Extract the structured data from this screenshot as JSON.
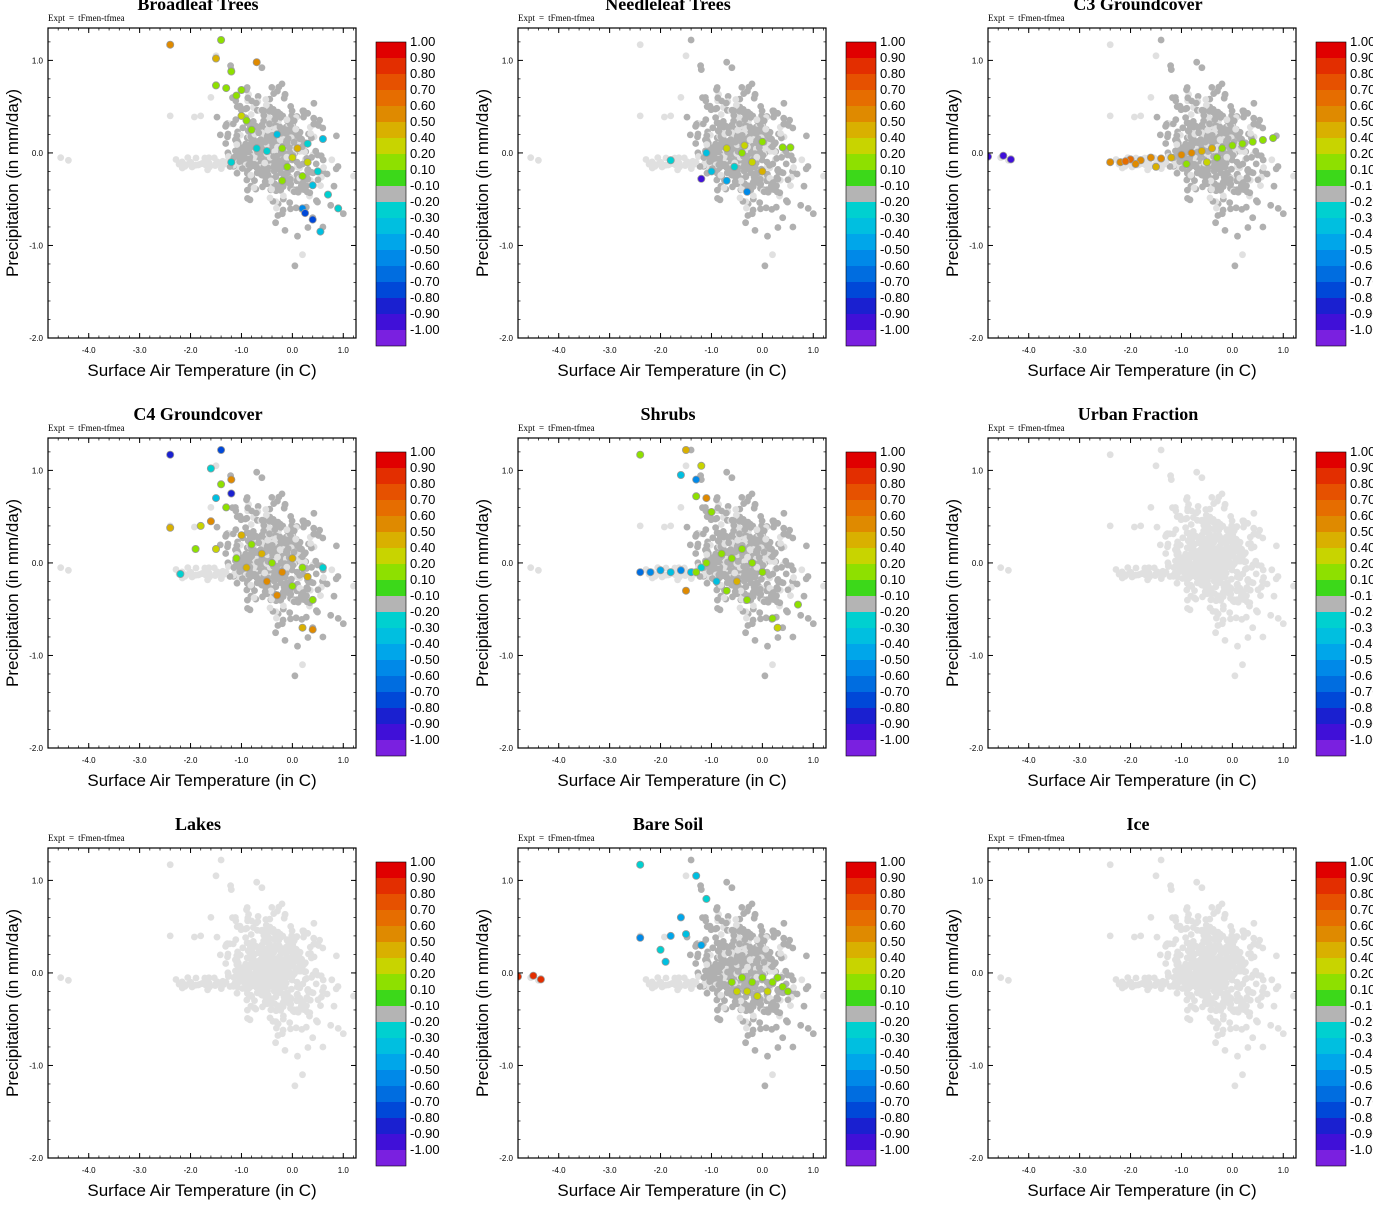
{
  "figure": {
    "expt_key": "Expt",
    "expt_eq": "=",
    "expt_value": "tFmen-tfmea"
  },
  "axes": {
    "xlabel": "Surface Air Temperature (in C)",
    "ylabel": "Precipitation (in mm/day)",
    "xlim": [
      -4.8,
      1.25
    ],
    "ylim": [
      -2.0,
      1.35
    ],
    "xticks": [
      -4.0,
      -3.0,
      -2.0,
      -1.0,
      0.0,
      1.0
    ],
    "xtick_labels": [
      "-4.0",
      "-3.0",
      "-2.0",
      "-1.0",
      "0.0",
      "1.0"
    ],
    "yticks": [
      1.0,
      0.0,
      -1.0,
      -2.0
    ],
    "ytick_labels": [
      "1.0",
      "0.0",
      "-1.0",
      "-2.0"
    ]
  },
  "colorbar": {
    "labels": [
      "1.00",
      "0.90",
      "0.80",
      "0.70",
      "0.60",
      "0.50",
      "0.40",
      "0.20",
      "0.10",
      "-0.10",
      "-0.20",
      "-0.30",
      "-0.40",
      "-0.50",
      "-0.60",
      "-0.70",
      "-0.80",
      "-0.90",
      "-1.00"
    ],
    "colors": [
      "#e00000",
      "#e32e00",
      "#e65100",
      "#e66d00",
      "#df8a00",
      "#d9b000",
      "#c8d400",
      "#8ee000",
      "#3cd81a",
      "#b4b4b4",
      "#00d0d0",
      "#00bfe0",
      "#00a6ea",
      "#0089e8",
      "#006de0",
      "#0048d8",
      "#1a20d0",
      "#4010d8",
      "#7a20e0"
    ]
  },
  "grey_colors": {
    "light": "#e0e0e0",
    "mid": "#b0b0b0"
  },
  "chart_data": [
    {
      "type": "scatter",
      "title": "Broadleaf Trees",
      "xlabel": "Surface Air Temperature (in C)",
      "ylabel": "Precipitation (in mm/day)",
      "highlight_points": [
        {
          "x": -2.4,
          "y": 1.17,
          "v": 0.6
        },
        {
          "x": -1.4,
          "y": 1.22,
          "v": 0.15
        },
        {
          "x": -1.5,
          "y": 1.02,
          "v": 0.45
        },
        {
          "x": -0.7,
          "y": 0.98,
          "v": 0.6
        },
        {
          "x": -1.2,
          "y": 0.88,
          "v": 0.15
        },
        {
          "x": -1.5,
          "y": 0.73,
          "v": 0.15
        },
        {
          "x": -1.3,
          "y": 0.7,
          "v": 0.15
        },
        {
          "x": -1.0,
          "y": 0.68,
          "v": 0.15
        },
        {
          "x": -1.1,
          "y": 0.62,
          "v": 0.15
        },
        {
          "x": -1.0,
          "y": 0.4,
          "v": 0.3
        },
        {
          "x": -0.9,
          "y": 0.35,
          "v": 0.15
        },
        {
          "x": -0.8,
          "y": 0.25,
          "v": 0.15
        },
        {
          "x": -1.2,
          "y": -0.1,
          "v": -0.2
        },
        {
          "x": -0.7,
          "y": 0.05,
          "v": -0.2
        },
        {
          "x": -0.5,
          "y": 0.02,
          "v": -0.25
        },
        {
          "x": -0.2,
          "y": 0.05,
          "v": 0.15
        },
        {
          "x": 0.0,
          "y": -0.05,
          "v": 0.4
        },
        {
          "x": 0.1,
          "y": 0.05,
          "v": 0.5
        },
        {
          "x": -0.1,
          "y": -0.15,
          "v": 0.15
        },
        {
          "x": -0.2,
          "y": -0.3,
          "v": 0.15
        },
        {
          "x": 0.3,
          "y": -0.1,
          "v": 0.3
        },
        {
          "x": 0.2,
          "y": -0.25,
          "v": 0.15
        },
        {
          "x": 0.5,
          "y": -0.2,
          "v": -0.2
        },
        {
          "x": 0.6,
          "y": 0.15,
          "v": -0.3
        },
        {
          "x": 0.3,
          "y": 0.1,
          "v": -0.25
        },
        {
          "x": -0.3,
          "y": 0.2,
          "v": -0.35
        },
        {
          "x": 0.4,
          "y": -0.35,
          "v": -0.3
        },
        {
          "x": 0.2,
          "y": -0.6,
          "v": -0.55
        },
        {
          "x": 0.25,
          "y": -0.65,
          "v": -0.7
        },
        {
          "x": 0.4,
          "y": -0.72,
          "v": -0.75
        },
        {
          "x": 0.55,
          "y": -0.85,
          "v": -0.3
        },
        {
          "x": 0.9,
          "y": -0.6,
          "v": -0.25
        },
        {
          "x": 0.7,
          "y": -0.45,
          "v": -0.2
        }
      ]
    },
    {
      "type": "scatter",
      "title": "Needleleaf Trees",
      "xlabel": "Surface Air Temperature (in C)",
      "ylabel": "Precipitation (in mm/day)",
      "highlight_points": [
        {
          "x": -1.8,
          "y": -0.08,
          "v": -0.25
        },
        {
          "x": -1.2,
          "y": -0.28,
          "v": -0.9
        },
        {
          "x": -1.1,
          "y": 0.0,
          "v": -0.3
        },
        {
          "x": -1.0,
          "y": -0.2,
          "v": -0.3
        },
        {
          "x": -0.7,
          "y": 0.05,
          "v": 0.4
        },
        {
          "x": -0.4,
          "y": 0.0,
          "v": 0.15
        },
        {
          "x": -0.2,
          "y": -0.1,
          "v": 0.35
        },
        {
          "x": -0.35,
          "y": 0.08,
          "v": 0.3
        },
        {
          "x": 0.0,
          "y": -0.2,
          "v": 0.5
        },
        {
          "x": 0.4,
          "y": 0.06,
          "v": 0.15
        },
        {
          "x": 0.55,
          "y": 0.06,
          "v": 0.15
        },
        {
          "x": -0.7,
          "y": -0.3,
          "v": -0.4
        },
        {
          "x": -0.3,
          "y": -0.42,
          "v": -0.5
        },
        {
          "x": 0.0,
          "y": 0.12,
          "v": 0.2
        },
        {
          "x": -0.55,
          "y": -0.15,
          "v": -0.25
        }
      ]
    },
    {
      "type": "scatter",
      "title": "C3 Groundcover",
      "xlabel": "Surface Air Temperature (in C)",
      "ylabel": "Precipitation (in mm/day)",
      "highlight_points": [
        {
          "x": -4.8,
          "y": -0.04,
          "v": -0.9
        },
        {
          "x": -4.5,
          "y": -0.03,
          "v": -0.9
        },
        {
          "x": -4.35,
          "y": -0.07,
          "v": -0.9
        },
        {
          "x": -2.4,
          "y": -0.1,
          "v": 0.6
        },
        {
          "x": -2.2,
          "y": -0.1,
          "v": 0.6
        },
        {
          "x": -2.0,
          "y": -0.07,
          "v": 0.65
        },
        {
          "x": -1.8,
          "y": -0.08,
          "v": 0.6
        },
        {
          "x": -1.6,
          "y": -0.05,
          "v": 0.55
        },
        {
          "x": -1.4,
          "y": -0.06,
          "v": 0.6
        },
        {
          "x": -1.2,
          "y": -0.05,
          "v": 0.5
        },
        {
          "x": -1.0,
          "y": -0.02,
          "v": 0.55
        },
        {
          "x": -0.8,
          "y": 0.0,
          "v": 0.6
        },
        {
          "x": -0.6,
          "y": 0.02,
          "v": 0.5
        },
        {
          "x": -0.4,
          "y": 0.05,
          "v": 0.45
        },
        {
          "x": -0.2,
          "y": 0.05,
          "v": 0.15
        },
        {
          "x": 0.0,
          "y": 0.08,
          "v": 0.15
        },
        {
          "x": 0.2,
          "y": 0.1,
          "v": 0.15
        },
        {
          "x": 0.4,
          "y": 0.12,
          "v": 0.15
        },
        {
          "x": 0.6,
          "y": 0.14,
          "v": 0.15
        },
        {
          "x": 0.8,
          "y": 0.16,
          "v": 0.15
        },
        {
          "x": -0.5,
          "y": -0.1,
          "v": 0.4
        },
        {
          "x": -1.5,
          "y": -0.15,
          "v": 0.45
        },
        {
          "x": -0.9,
          "y": -0.12,
          "v": 0.15
        },
        {
          "x": -1.9,
          "y": -0.12,
          "v": 0.55
        },
        {
          "x": -0.3,
          "y": -0.05,
          "v": 0.15
        },
        {
          "x": -2.1,
          "y": -0.09,
          "v": 0.65
        }
      ]
    },
    {
      "type": "scatter",
      "title": "C4 Groundcover",
      "xlabel": "Surface Air Temperature (in C)",
      "ylabel": "Precipitation (in mm/day)",
      "highlight_points": [
        {
          "x": -2.4,
          "y": 1.17,
          "v": -0.8
        },
        {
          "x": -1.4,
          "y": 1.22,
          "v": -0.75
        },
        {
          "x": -1.6,
          "y": 1.02,
          "v": -0.25
        },
        {
          "x": -1.2,
          "y": 0.9,
          "v": 0.55
        },
        {
          "x": -1.4,
          "y": 0.85,
          "v": 0.15
        },
        {
          "x": -1.2,
          "y": 0.75,
          "v": -0.8
        },
        {
          "x": -1.5,
          "y": 0.7,
          "v": -0.3
        },
        {
          "x": -1.3,
          "y": 0.6,
          "v": 0.15
        },
        {
          "x": -1.6,
          "y": 0.45,
          "v": 0.6
        },
        {
          "x": -1.8,
          "y": 0.4,
          "v": 0.3
        },
        {
          "x": -2.4,
          "y": 0.38,
          "v": 0.5
        },
        {
          "x": -2.2,
          "y": -0.12,
          "v": -0.25
        },
        {
          "x": -1.9,
          "y": 0.15,
          "v": 0.15
        },
        {
          "x": -1.5,
          "y": 0.15,
          "v": 0.4
        },
        {
          "x": -1.0,
          "y": 0.3,
          "v": 0.5
        },
        {
          "x": -0.8,
          "y": 0.2,
          "v": 0.15
        },
        {
          "x": -0.6,
          "y": 0.1,
          "v": 0.5
        },
        {
          "x": -0.4,
          "y": 0.0,
          "v": 0.15
        },
        {
          "x": -0.2,
          "y": -0.1,
          "v": 0.6
        },
        {
          "x": 0.0,
          "y": 0.05,
          "v": 0.5
        },
        {
          "x": 0.2,
          "y": -0.05,
          "v": 0.15
        },
        {
          "x": -0.5,
          "y": -0.2,
          "v": 0.55
        },
        {
          "x": -0.3,
          "y": -0.35,
          "v": 0.6
        },
        {
          "x": 0.0,
          "y": -0.25,
          "v": 0.15
        },
        {
          "x": 0.3,
          "y": -0.15,
          "v": 0.5
        },
        {
          "x": 0.4,
          "y": -0.4,
          "v": 0.15
        },
        {
          "x": 0.6,
          "y": -0.05,
          "v": -0.25
        },
        {
          "x": 0.2,
          "y": -0.7,
          "v": 0.45
        },
        {
          "x": 0.4,
          "y": -0.72,
          "v": 0.6
        },
        {
          "x": -1.1,
          "y": 0.05,
          "v": 0.15
        },
        {
          "x": -0.9,
          "y": -0.05,
          "v": 0.45
        }
      ]
    },
    {
      "type": "scatter",
      "title": "Shrubs",
      "xlabel": "Surface Air Temperature (in C)",
      "ylabel": "Precipitation (in mm/day)",
      "highlight_points": [
        {
          "x": -2.4,
          "y": 1.17,
          "v": 0.15
        },
        {
          "x": -1.5,
          "y": 1.22,
          "v": 0.45
        },
        {
          "x": -1.2,
          "y": 1.05,
          "v": 0.4
        },
        {
          "x": -1.6,
          "y": 0.95,
          "v": -0.3
        },
        {
          "x": -1.3,
          "y": 0.9,
          "v": -0.5
        },
        {
          "x": -1.1,
          "y": 0.7,
          "v": 0.55
        },
        {
          "x": -1.3,
          "y": 0.72,
          "v": 0.15
        },
        {
          "x": -1.0,
          "y": 0.55,
          "v": 0.15
        },
        {
          "x": -2.4,
          "y": -0.1,
          "v": -0.6
        },
        {
          "x": -2.2,
          "y": -0.1,
          "v": -0.5
        },
        {
          "x": -2.0,
          "y": -0.08,
          "v": -0.4
        },
        {
          "x": -1.8,
          "y": -0.1,
          "v": -0.3
        },
        {
          "x": -1.6,
          "y": -0.08,
          "v": -0.5
        },
        {
          "x": -1.4,
          "y": -0.1,
          "v": -0.3
        },
        {
          "x": -1.2,
          "y": -0.05,
          "v": -0.25
        },
        {
          "x": -1.1,
          "y": 0.0,
          "v": 0.15
        },
        {
          "x": -0.8,
          "y": 0.1,
          "v": 0.15
        },
        {
          "x": -0.6,
          "y": 0.05,
          "v": 0.15
        },
        {
          "x": -0.4,
          "y": 0.15,
          "v": 0.15
        },
        {
          "x": -0.2,
          "y": 0.0,
          "v": 0.15
        },
        {
          "x": 0.0,
          "y": -0.1,
          "v": 0.15
        },
        {
          "x": -0.5,
          "y": -0.2,
          "v": 0.45
        },
        {
          "x": -0.7,
          "y": -0.3,
          "v": 0.15
        },
        {
          "x": -0.3,
          "y": -0.4,
          "v": 0.15
        },
        {
          "x": 0.2,
          "y": -0.6,
          "v": 0.15
        },
        {
          "x": 0.3,
          "y": -0.7,
          "v": 0.4
        },
        {
          "x": 0.7,
          "y": -0.45,
          "v": 0.15
        },
        {
          "x": -1.5,
          "y": -0.3,
          "v": 0.55
        },
        {
          "x": -1.3,
          "y": -0.1,
          "v": 0.15
        },
        {
          "x": -0.9,
          "y": -0.2,
          "v": -0.3
        }
      ]
    },
    {
      "type": "scatter",
      "title": "Urban Fraction",
      "xlabel": "Surface Air Temperature (in C)",
      "ylabel": "Precipitation (in mm/day)",
      "highlight_points": []
    },
    {
      "type": "scatter",
      "title": "Lakes",
      "xlabel": "Surface Air Temperature (in C)",
      "ylabel": "Precipitation (in mm/day)",
      "highlight_points": []
    },
    {
      "type": "scatter",
      "title": "Bare Soil",
      "xlabel": "Surface Air Temperature (in C)",
      "ylabel": "Precipitation (in mm/day)",
      "highlight_points": [
        {
          "x": -4.8,
          "y": -0.04,
          "v": 0.85
        },
        {
          "x": -4.5,
          "y": -0.03,
          "v": 0.9
        },
        {
          "x": -4.35,
          "y": -0.07,
          "v": 0.85
        },
        {
          "x": -2.4,
          "y": 1.17,
          "v": -0.25
        },
        {
          "x": -1.3,
          "y": 1.05,
          "v": -0.3
        },
        {
          "x": -1.1,
          "y": 0.8,
          "v": -0.25
        },
        {
          "x": -1.6,
          "y": 0.6,
          "v": -0.4
        },
        {
          "x": -1.5,
          "y": 0.42,
          "v": -0.35
        },
        {
          "x": -2.4,
          "y": 0.38,
          "v": -0.55
        },
        {
          "x": -1.8,
          "y": 0.4,
          "v": -0.45
        },
        {
          "x": -2.0,
          "y": 0.25,
          "v": -0.25
        },
        {
          "x": -1.9,
          "y": 0.12,
          "v": -0.3
        },
        {
          "x": -1.2,
          "y": 0.3,
          "v": -0.4
        },
        {
          "x": -0.6,
          "y": -0.1,
          "v": 0.15
        },
        {
          "x": -0.4,
          "y": -0.05,
          "v": 0.15
        },
        {
          "x": -0.2,
          "y": -0.1,
          "v": 0.15
        },
        {
          "x": 0.0,
          "y": -0.05,
          "v": 0.15
        },
        {
          "x": 0.2,
          "y": -0.1,
          "v": 0.15
        },
        {
          "x": 0.4,
          "y": -0.15,
          "v": 0.15
        },
        {
          "x": -0.5,
          "y": -0.2,
          "v": 0.3
        },
        {
          "x": -0.3,
          "y": -0.2,
          "v": 0.3
        },
        {
          "x": 0.1,
          "y": -0.2,
          "v": 0.3
        },
        {
          "x": -0.1,
          "y": -0.25,
          "v": 0.3
        },
        {
          "x": 0.3,
          "y": -0.05,
          "v": 0.15
        },
        {
          "x": 0.5,
          "y": -0.2,
          "v": 0.15
        }
      ]
    },
    {
      "type": "scatter",
      "title": "Ice",
      "xlabel": "Surface Air Temperature (in C)",
      "ylabel": "Precipitation (in mm/day)",
      "highlight_points": []
    }
  ]
}
